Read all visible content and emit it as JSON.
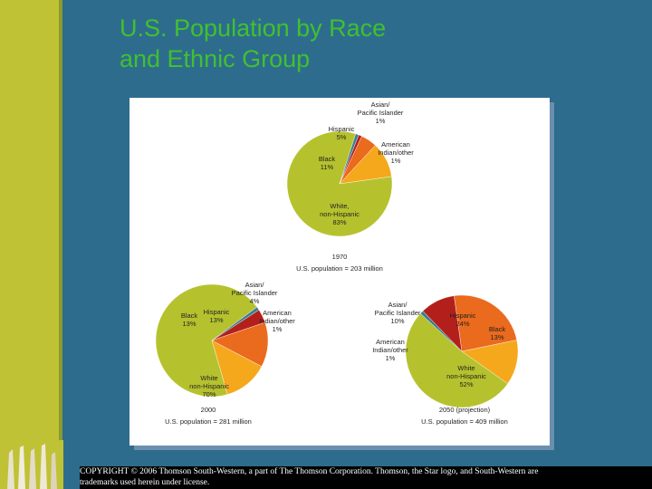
{
  "slide": {
    "title_line1": "U.S. Population by Race",
    "title_line2": "and Ethnic Group",
    "footer_line1": "COPYRIGHT © 2006 Thomson South-Western, a part of The Thomson Corporation. Thomson, the Star logo, and South-Western are",
    "footer_line2": "trademarks used herein under license."
  },
  "colors": {
    "White, non-Hispanic": "#b5c22e",
    "Black": "#f5a81c",
    "Hispanic": "#ea6a1e",
    "Asian/Pacific Islander": "#b3201c",
    "American Indian/other": "#3c7d95"
  },
  "chart_data": [
    {
      "type": "pie",
      "caption_year": "1970",
      "caption_total": "U.S. population = 203 million",
      "slices": [
        {
          "label": "White, non-Hispanic",
          "value": 83
        },
        {
          "label": "Black",
          "value": 11
        },
        {
          "label": "Hispanic",
          "value": 5
        },
        {
          "label": "Asian/Pacific Islander",
          "value": 1
        },
        {
          "label": "American Indian/other",
          "value": 1
        }
      ],
      "labels": [
        {
          "lines": [
            "Asian/",
            "Pacific Islander",
            "1%"
          ]
        },
        {
          "lines": [
            "Hispanic",
            "5%"
          ]
        },
        {
          "lines": [
            "American",
            "Indian/other",
            "1%"
          ]
        },
        {
          "lines": [
            "Black",
            "11%"
          ]
        },
        {
          "lines": [
            "White,",
            "non-Hispanic",
            "83%"
          ]
        }
      ]
    },
    {
      "type": "pie",
      "caption_year": "2000",
      "caption_total": "U.S. population = 281 million",
      "slices": [
        {
          "label": "White, non-Hispanic",
          "value": 70
        },
        {
          "label": "Black",
          "value": 13
        },
        {
          "label": "Hispanic",
          "value": 13
        },
        {
          "label": "Asian/Pacific Islander",
          "value": 4
        },
        {
          "label": "American Indian/other",
          "value": 1
        }
      ],
      "labels": [
        {
          "lines": [
            "Asian/",
            "Pacific Islander",
            "4%"
          ]
        },
        {
          "lines": [
            "Black",
            "13%"
          ]
        },
        {
          "lines": [
            "Hispanic",
            "13%"
          ]
        },
        {
          "lines": [
            "American",
            "Indian/other",
            "1%"
          ]
        },
        {
          "lines": [
            "White",
            "non-Hispanic",
            "70%"
          ]
        }
      ]
    },
    {
      "type": "pie",
      "caption_year": "2050 (projection)",
      "caption_total": "U.S. population = 409 million",
      "slices": [
        {
          "label": "White, non-Hispanic",
          "value": 52
        },
        {
          "label": "Black",
          "value": 13
        },
        {
          "label": "Hispanic",
          "value": 24
        },
        {
          "label": "Asian/Pacific Islander",
          "value": 10
        },
        {
          "label": "American Indian/other",
          "value": 1
        }
      ],
      "labels": [
        {
          "lines": [
            "Asian/",
            "Pacific Islander",
            "10%"
          ]
        },
        {
          "lines": [
            "Hispanic",
            "24%"
          ]
        },
        {
          "lines": [
            "Black",
            "13%"
          ]
        },
        {
          "lines": [
            "American",
            "Indian/other",
            "1%"
          ]
        },
        {
          "lines": [
            "White",
            "non-Hispanic",
            "52%"
          ]
        }
      ]
    }
  ]
}
